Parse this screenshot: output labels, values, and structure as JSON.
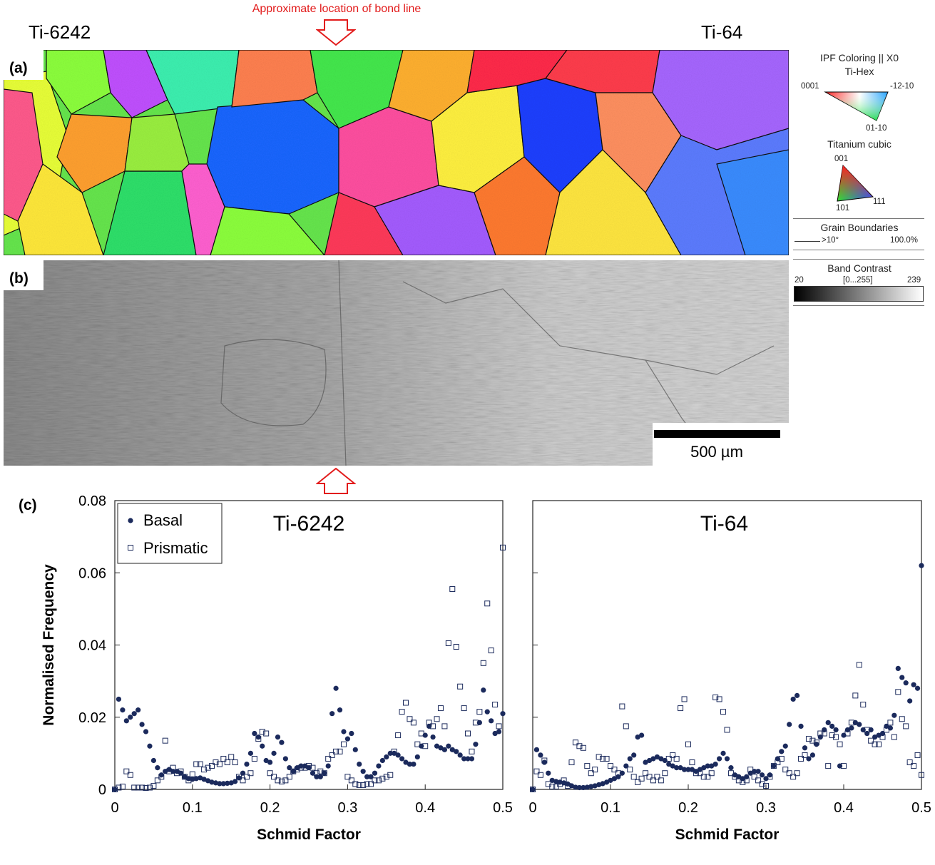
{
  "figure": {
    "bond_line_label": "Approximate location of  bond line",
    "alloy_left": "Ti-6242",
    "alloy_right": "Ti-64",
    "panel_a": "(a)",
    "panel_b": "(b)",
    "panel_c": "(c)",
    "scale_bar_label": "500 µm"
  },
  "legend": {
    "ipf_title": "IPF Coloring || X0",
    "ti_hex": "Ti-Hex",
    "hex_corner_0001": "0001",
    "hex_corner_12": "-12-10",
    "hex_corner_01": "01-10",
    "ti_cubic": "Titanium cubic",
    "cubic_001": "001",
    "cubic_101": "101",
    "cubic_111": "111",
    "grain_boundaries": "Grain Boundaries",
    "gb_angle": ">10°",
    "gb_percent": "100.0%",
    "band_contrast": "Band Contrast",
    "bc_min": "20",
    "bc_range": "[0...255]",
    "bc_max": "239"
  },
  "colors": {
    "marker": "#1b2a5c",
    "bond_arrow": "#e21b1b"
  },
  "chart_data": [
    {
      "type": "scatter",
      "title": "Ti-6242",
      "xlabel": "Schmid Factor",
      "ylabel": "Normalised Frequency",
      "xlim": [
        0,
        0.5
      ],
      "ylim": [
        0,
        0.08
      ],
      "xticks": [
        "0",
        "0.1",
        "0.2",
        "0.3",
        "0.4",
        "0.5"
      ],
      "yticks": [
        "0",
        "0.02",
        "0.04",
        "0.06",
        "0.08"
      ],
      "legend": "top-left",
      "series": [
        {
          "name": "Basal",
          "marker": "filled-circle",
          "x": [
            0.0,
            0.005,
            0.01,
            0.015,
            0.02,
            0.025,
            0.03,
            0.035,
            0.04,
            0.045,
            0.05,
            0.055,
            0.06,
            0.065,
            0.07,
            0.075,
            0.08,
            0.085,
            0.09,
            0.095,
            0.1,
            0.105,
            0.11,
            0.115,
            0.12,
            0.125,
            0.13,
            0.135,
            0.14,
            0.145,
            0.15,
            0.155,
            0.16,
            0.165,
            0.17,
            0.175,
            0.18,
            0.185,
            0.19,
            0.195,
            0.2,
            0.205,
            0.21,
            0.215,
            0.22,
            0.225,
            0.23,
            0.235,
            0.24,
            0.245,
            0.25,
            0.255,
            0.26,
            0.265,
            0.27,
            0.275,
            0.28,
            0.285,
            0.29,
            0.295,
            0.3,
            0.305,
            0.31,
            0.315,
            0.32,
            0.325,
            0.33,
            0.335,
            0.34,
            0.345,
            0.35,
            0.355,
            0.36,
            0.365,
            0.37,
            0.375,
            0.38,
            0.385,
            0.39,
            0.395,
            0.4,
            0.405,
            0.41,
            0.415,
            0.42,
            0.425,
            0.43,
            0.435,
            0.44,
            0.445,
            0.45,
            0.455,
            0.46,
            0.465,
            0.47,
            0.475,
            0.48,
            0.485,
            0.49,
            0.495,
            0.5
          ],
          "y": [
            0.0,
            0.025,
            0.022,
            0.019,
            0.02,
            0.021,
            0.022,
            0.018,
            0.016,
            0.012,
            0.008,
            0.006,
            0.004,
            0.005,
            0.0055,
            0.005,
            0.005,
            0.0045,
            0.0035,
            0.003,
            0.0028,
            0.003,
            0.0032,
            0.0028,
            0.0024,
            0.002,
            0.0018,
            0.0016,
            0.0016,
            0.0017,
            0.0018,
            0.0022,
            0.0032,
            0.0045,
            0.007,
            0.01,
            0.0155,
            0.0145,
            0.012,
            0.008,
            0.0075,
            0.01,
            0.0145,
            0.013,
            0.0085,
            0.006,
            0.005,
            0.006,
            0.0065,
            0.0065,
            0.006,
            0.0045,
            0.0035,
            0.0035,
            0.0045,
            0.0065,
            0.021,
            0.028,
            0.022,
            0.016,
            0.014,
            0.0155,
            0.011,
            0.007,
            0.005,
            0.0035,
            0.0035,
            0.0045,
            0.0065,
            0.008,
            0.009,
            0.01,
            0.01,
            0.0095,
            0.0085,
            0.0075,
            0.007,
            0.007,
            0.009,
            0.012,
            0.015,
            0.0175,
            0.0145,
            0.012,
            0.0115,
            0.011,
            0.012,
            0.011,
            0.0105,
            0.0095,
            0.0085,
            0.0085,
            0.0085,
            0.0125,
            0.0185,
            0.0275,
            0.0215,
            0.019,
            0.0155,
            0.016,
            0.021
          ]
        },
        {
          "name": "Prismatic",
          "marker": "open-square",
          "x": [
            0.0,
            0.005,
            0.01,
            0.015,
            0.02,
            0.025,
            0.03,
            0.035,
            0.04,
            0.045,
            0.05,
            0.055,
            0.06,
            0.065,
            0.07,
            0.075,
            0.08,
            0.085,
            0.09,
            0.095,
            0.1,
            0.105,
            0.11,
            0.115,
            0.12,
            0.125,
            0.13,
            0.135,
            0.14,
            0.145,
            0.15,
            0.155,
            0.16,
            0.165,
            0.17,
            0.175,
            0.18,
            0.185,
            0.19,
            0.195,
            0.2,
            0.205,
            0.21,
            0.215,
            0.22,
            0.225,
            0.23,
            0.235,
            0.24,
            0.245,
            0.25,
            0.255,
            0.26,
            0.265,
            0.27,
            0.275,
            0.28,
            0.285,
            0.29,
            0.295,
            0.3,
            0.305,
            0.31,
            0.315,
            0.32,
            0.325,
            0.33,
            0.335,
            0.34,
            0.345,
            0.35,
            0.355,
            0.36,
            0.365,
            0.37,
            0.375,
            0.38,
            0.385,
            0.39,
            0.395,
            0.4,
            0.405,
            0.41,
            0.415,
            0.42,
            0.425,
            0.43,
            0.435,
            0.44,
            0.445,
            0.45,
            0.455,
            0.46,
            0.465,
            0.47,
            0.475,
            0.48,
            0.485,
            0.49,
            0.495,
            0.5
          ],
          "y": [
            0.0,
            0.0005,
            0.0008,
            0.005,
            0.004,
            0.0005,
            0.0005,
            0.0005,
            0.0004,
            0.0005,
            0.001,
            0.0025,
            0.0035,
            0.0135,
            0.005,
            0.006,
            0.0045,
            0.005,
            0.0035,
            0.0025,
            0.0042,
            0.007,
            0.007,
            0.0055,
            0.006,
            0.0065,
            0.0075,
            0.007,
            0.0085,
            0.0075,
            0.009,
            0.0075,
            0.0035,
            0.0025,
            0.0035,
            0.0045,
            0.0085,
            0.014,
            0.016,
            0.0155,
            0.0045,
            0.0035,
            0.0025,
            0.0022,
            0.0025,
            0.0035,
            0.005,
            0.0055,
            0.006,
            0.006,
            0.0065,
            0.006,
            0.0045,
            0.005,
            0.0045,
            0.0085,
            0.0095,
            0.0105,
            0.0105,
            0.0125,
            0.0035,
            0.0025,
            0.0015,
            0.0012,
            0.0012,
            0.0015,
            0.0015,
            0.0025,
            0.0025,
            0.003,
            0.0035,
            0.004,
            0.0105,
            0.015,
            0.0215,
            0.024,
            0.0195,
            0.0185,
            0.0125,
            0.0155,
            0.012,
            0.0185,
            0.0175,
            0.0195,
            0.0225,
            0.0175,
            0.0405,
            0.0555,
            0.0395,
            0.0285,
            0.0225,
            0.0155,
            0.0105,
            0.0185,
            0.0215,
            0.035,
            0.0515,
            0.0385,
            0.0235,
            0.0175,
            0.067
          ]
        }
      ]
    },
    {
      "type": "scatter",
      "title": "Ti-64",
      "xlabel": "Schmid Factor",
      "ylabel": "",
      "xlim": [
        0,
        0.5
      ],
      "ylim": [
        0,
        0.08
      ],
      "xticks": [
        "0",
        "0.1",
        "0.2",
        "0.3",
        "0.4",
        "0.5"
      ],
      "legend": "",
      "series": [
        {
          "name": "Basal",
          "marker": "filled-circle",
          "x": [
            0.0,
            0.005,
            0.01,
            0.015,
            0.02,
            0.025,
            0.03,
            0.035,
            0.04,
            0.045,
            0.05,
            0.055,
            0.06,
            0.065,
            0.07,
            0.075,
            0.08,
            0.085,
            0.09,
            0.095,
            0.1,
            0.105,
            0.11,
            0.115,
            0.12,
            0.125,
            0.13,
            0.135,
            0.14,
            0.145,
            0.15,
            0.155,
            0.16,
            0.165,
            0.17,
            0.175,
            0.18,
            0.185,
            0.19,
            0.195,
            0.2,
            0.205,
            0.21,
            0.215,
            0.22,
            0.225,
            0.23,
            0.235,
            0.24,
            0.245,
            0.25,
            0.255,
            0.26,
            0.265,
            0.27,
            0.275,
            0.28,
            0.285,
            0.29,
            0.295,
            0.3,
            0.305,
            0.31,
            0.315,
            0.32,
            0.325,
            0.33,
            0.335,
            0.34,
            0.345,
            0.35,
            0.355,
            0.36,
            0.365,
            0.37,
            0.375,
            0.38,
            0.385,
            0.39,
            0.395,
            0.4,
            0.405,
            0.41,
            0.415,
            0.42,
            0.425,
            0.43,
            0.435,
            0.44,
            0.445,
            0.45,
            0.455,
            0.46,
            0.465,
            0.47,
            0.475,
            0.48,
            0.485,
            0.49,
            0.495,
            0.5
          ],
          "y": [
            0.0,
            0.011,
            0.0095,
            0.0075,
            0.0045,
            0.0025,
            0.0022,
            0.002,
            0.0018,
            0.0015,
            0.001,
            0.0006,
            0.0005,
            0.0005,
            0.0006,
            0.0008,
            0.001,
            0.0013,
            0.0016,
            0.002,
            0.0025,
            0.003,
            0.0035,
            0.0045,
            0.0065,
            0.0085,
            0.0095,
            0.0145,
            0.015,
            0.0075,
            0.008,
            0.0085,
            0.009,
            0.0085,
            0.008,
            0.007,
            0.0065,
            0.006,
            0.006,
            0.0055,
            0.0055,
            0.0055,
            0.005,
            0.0055,
            0.006,
            0.0065,
            0.0065,
            0.007,
            0.0085,
            0.01,
            0.0085,
            0.006,
            0.004,
            0.0035,
            0.003,
            0.0035,
            0.0045,
            0.005,
            0.005,
            0.004,
            0.003,
            0.004,
            0.0065,
            0.0085,
            0.0105,
            0.012,
            0.018,
            0.025,
            0.026,
            0.0175,
            0.0115,
            0.0085,
            0.0095,
            0.0125,
            0.0145,
            0.0165,
            0.0185,
            0.0175,
            0.0165,
            0.0065,
            0.015,
            0.0165,
            0.017,
            0.0185,
            0.018,
            0.0165,
            0.0155,
            0.0165,
            0.0145,
            0.015,
            0.0155,
            0.0175,
            0.017,
            0.0205,
            0.0335,
            0.031,
            0.0295,
            0.0245,
            0.029,
            0.028,
            0.062
          ]
        },
        {
          "name": "Prismatic",
          "marker": "open-square",
          "x": [
            0.0,
            0.005,
            0.01,
            0.015,
            0.02,
            0.025,
            0.03,
            0.035,
            0.04,
            0.045,
            0.05,
            0.055,
            0.06,
            0.065,
            0.07,
            0.075,
            0.08,
            0.085,
            0.09,
            0.095,
            0.1,
            0.105,
            0.11,
            0.115,
            0.12,
            0.125,
            0.13,
            0.135,
            0.14,
            0.145,
            0.15,
            0.155,
            0.16,
            0.165,
            0.17,
            0.175,
            0.18,
            0.185,
            0.19,
            0.195,
            0.2,
            0.205,
            0.21,
            0.215,
            0.22,
            0.225,
            0.23,
            0.235,
            0.24,
            0.245,
            0.25,
            0.255,
            0.26,
            0.265,
            0.27,
            0.275,
            0.28,
            0.285,
            0.29,
            0.295,
            0.3,
            0.305,
            0.31,
            0.315,
            0.32,
            0.325,
            0.33,
            0.335,
            0.34,
            0.345,
            0.35,
            0.355,
            0.36,
            0.365,
            0.37,
            0.375,
            0.38,
            0.385,
            0.39,
            0.395,
            0.4,
            0.405,
            0.41,
            0.415,
            0.42,
            0.425,
            0.43,
            0.435,
            0.44,
            0.445,
            0.45,
            0.455,
            0.46,
            0.465,
            0.47,
            0.475,
            0.48,
            0.485,
            0.49,
            0.495,
            0.5
          ],
          "y": [
            0.0,
            0.005,
            0.004,
            0.008,
            0.0015,
            0.0008,
            0.0008,
            0.0015,
            0.0025,
            0.001,
            0.0075,
            0.013,
            0.012,
            0.0115,
            0.0065,
            0.0045,
            0.0055,
            0.009,
            0.0085,
            0.0085,
            0.0065,
            0.0055,
            0.0045,
            0.023,
            0.0175,
            0.0055,
            0.0035,
            0.002,
            0.003,
            0.0045,
            0.0035,
            0.0025,
            0.0035,
            0.0025,
            0.0045,
            0.0085,
            0.0095,
            0.0085,
            0.0225,
            0.025,
            0.0125,
            0.0075,
            0.0045,
            0.0045,
            0.0035,
            0.0035,
            0.0045,
            0.0255,
            0.025,
            0.0215,
            0.0165,
            0.0045,
            0.0035,
            0.0025,
            0.002,
            0.0025,
            0.0055,
            0.0035,
            0.0025,
            0.0015,
            0.001,
            0.0035,
            0.0065,
            0.0075,
            0.0085,
            0.0055,
            0.0045,
            0.0035,
            0.0045,
            0.0085,
            0.0095,
            0.014,
            0.0135,
            0.013,
            0.0155,
            0.0155,
            0.0065,
            0.015,
            0.0145,
            0.0125,
            0.0065,
            0.0155,
            0.0185,
            0.026,
            0.0345,
            0.0235,
            0.0165,
            0.0135,
            0.0125,
            0.0125,
            0.0145,
            0.0165,
            0.0185,
            0.0145,
            0.027,
            0.0195,
            0.0175,
            0.0075,
            0.0065,
            0.0095,
            0.004
          ]
        }
      ]
    }
  ]
}
